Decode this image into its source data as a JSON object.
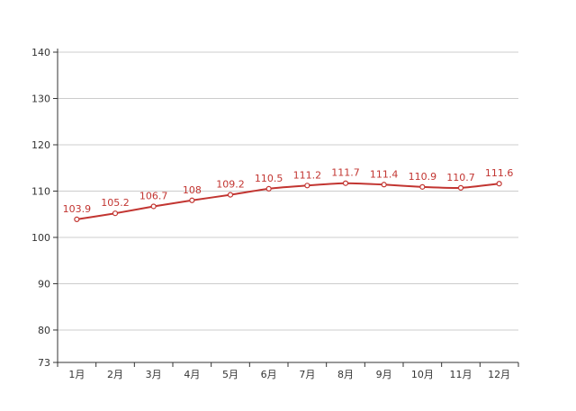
{
  "chart_data": {
    "type": "line",
    "categories": [
      "1月",
      "2月",
      "3月",
      "4月",
      "5月",
      "6月",
      "7月",
      "8月",
      "9月",
      "10月",
      "11月",
      "12月"
    ],
    "values": [
      103.9,
      105.2,
      106.7,
      108,
      109.2,
      110.5,
      111.2,
      111.7,
      111.4,
      110.9,
      110.7,
      111.6
    ],
    "data_labels": [
      "103.9",
      "105.2",
      "106.7",
      "108",
      "109.2",
      "110.5",
      "111.2",
      "111.7",
      "111.4",
      "110.9",
      "110.7",
      "111.6"
    ],
    "title": "",
    "xlabel": "",
    "ylabel": "",
    "ylim": [
      73,
      140
    ],
    "y_ticks": [
      73,
      80,
      90,
      100,
      110,
      120,
      130,
      140
    ],
    "grid": true,
    "colors": {
      "line": "#c23531",
      "grid": "#cccccc",
      "axis": "#333333"
    }
  }
}
